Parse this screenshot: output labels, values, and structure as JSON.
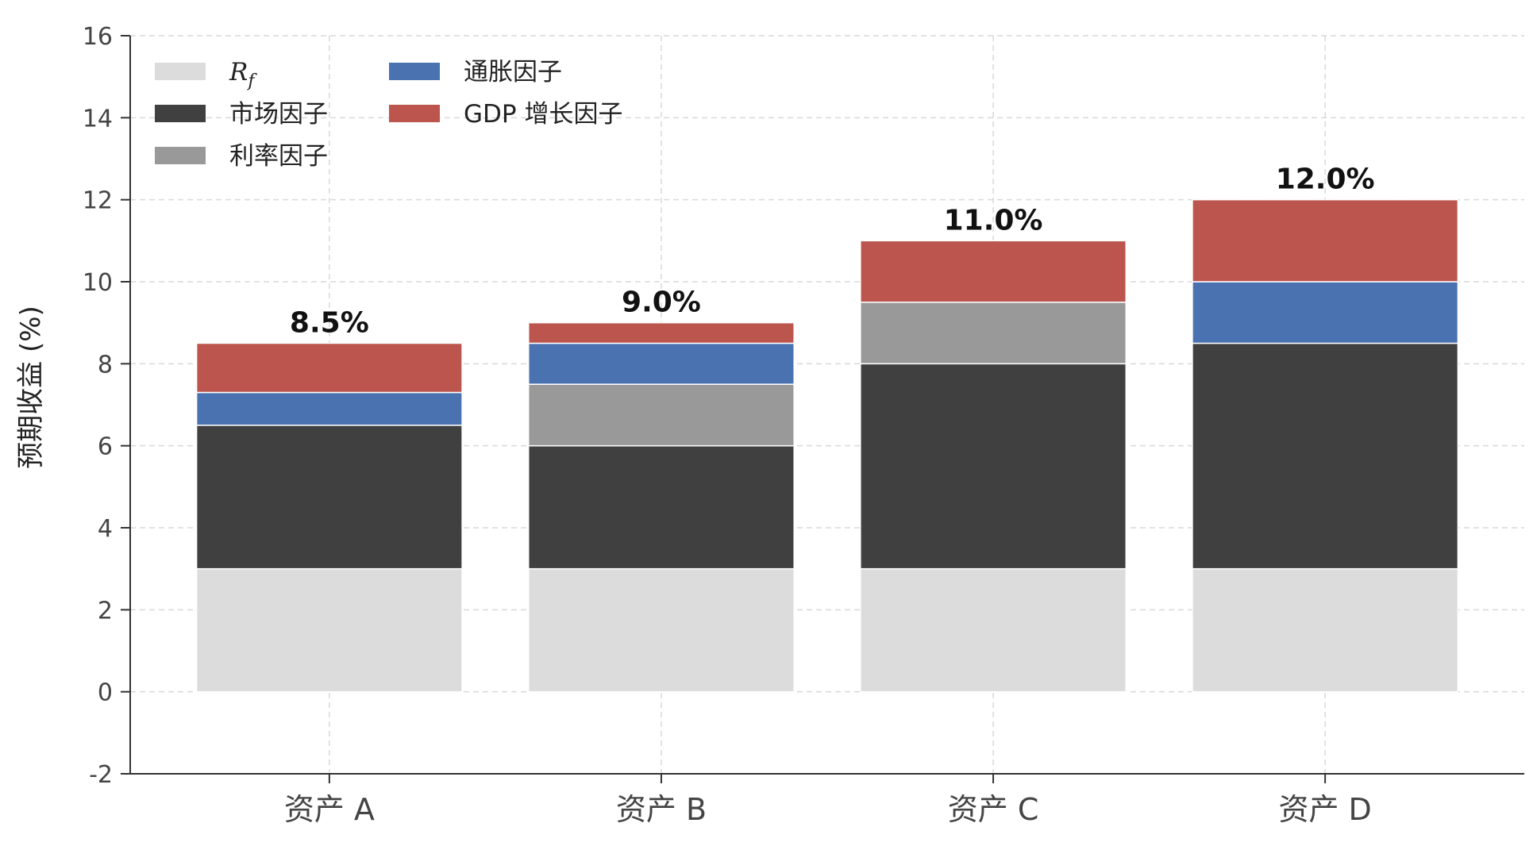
{
  "chart_data": {
    "type": "bar",
    "stacked": true,
    "categories": [
      "资产 A",
      "资产 B",
      "资产 C",
      "资产 D"
    ],
    "series": [
      {
        "name": "R_f",
        "legend_label": "R",
        "legend_sub": "f",
        "color": "#dcdcdc",
        "values": [
          3.0,
          3.0,
          3.0,
          3.0
        ]
      },
      {
        "name": "市场因子",
        "color": "#404040",
        "values": [
          3.5,
          3.0,
          5.0,
          5.5
        ]
      },
      {
        "name": "利率因子",
        "color": "#999999",
        "values": [
          0.0,
          1.5,
          1.5,
          0.0
        ]
      },
      {
        "name": "通胀因子",
        "color": "#4a72b0",
        "values": [
          0.8,
          1.0,
          0.0,
          1.5
        ]
      },
      {
        "name": "GDP 增长因子",
        "color": "#bb554d",
        "values": [
          1.2,
          0.5,
          1.5,
          2.0
        ]
      }
    ],
    "totals": [
      "8.5%",
      "9.0%",
      "11.0%",
      "12.0%"
    ],
    "ylabel": "预期收益 (%)",
    "xlabel": "",
    "title": "",
    "ylim": [
      -2,
      16
    ],
    "yticks": [
      "-2",
      "0",
      "2",
      "4",
      "6",
      "8",
      "10",
      "12",
      "14",
      "16"
    ],
    "grid": true,
    "legend_position": "top-left"
  }
}
